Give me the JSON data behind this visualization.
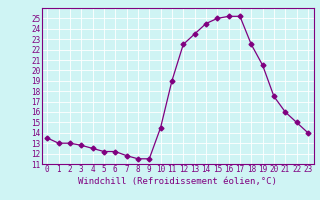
{
  "x": [
    0,
    1,
    2,
    3,
    4,
    5,
    6,
    7,
    8,
    9,
    10,
    11,
    12,
    13,
    14,
    15,
    16,
    17,
    18,
    19,
    20,
    21,
    22,
    23
  ],
  "y": [
    13.5,
    13.0,
    13.0,
    12.8,
    12.5,
    12.2,
    12.2,
    11.8,
    11.5,
    11.5,
    14.5,
    19.0,
    22.5,
    23.5,
    24.5,
    25.0,
    25.2,
    25.2,
    22.5,
    20.5,
    17.5,
    16.0,
    15.0,
    14.0
  ],
  "line_color": "#800080",
  "marker": "D",
  "markersize": 2.5,
  "linewidth": 0.9,
  "bg_color": "#cff4f4",
  "grid_color": "#ffffff",
  "xlabel": "Windchill (Refroidissement éolien,°C)",
  "xlabel_color": "#800080",
  "tick_color": "#800080",
  "xlim": [
    -0.5,
    23.5
  ],
  "ylim": [
    11,
    26
  ],
  "yticks": [
    11,
    12,
    13,
    14,
    15,
    16,
    17,
    18,
    19,
    20,
    21,
    22,
    23,
    24,
    25
  ],
  "xticks": [
    0,
    1,
    2,
    3,
    4,
    5,
    6,
    7,
    8,
    9,
    10,
    11,
    12,
    13,
    14,
    15,
    16,
    17,
    18,
    19,
    20,
    21,
    22,
    23
  ],
  "fontsize_xlabel": 6.5,
  "fontsize_ticks": 5.5
}
